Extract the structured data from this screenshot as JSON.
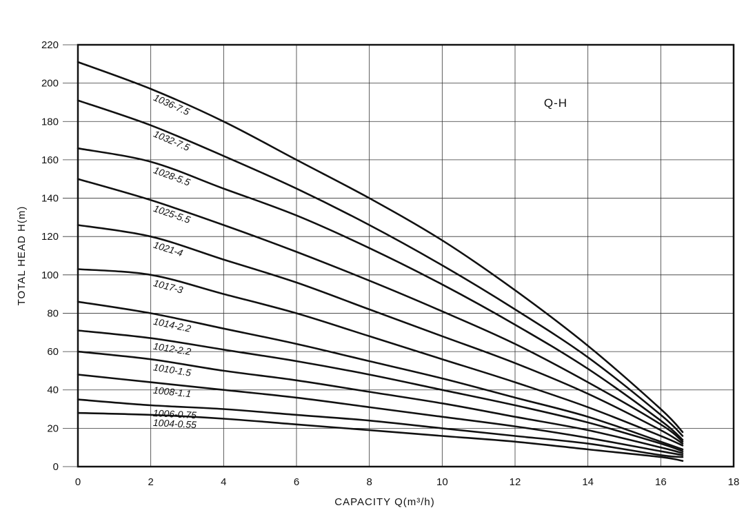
{
  "chart_data": {
    "type": "line",
    "title": "",
    "annotation": "Q-H",
    "xlabel": "CAPACITY  Q(m³/h)",
    "ylabel": "TOTAL HEAD  H(m)",
    "xlim": [
      0,
      18
    ],
    "ylim": [
      0,
      220
    ],
    "xticks": [
      "0",
      "2",
      "4",
      "6",
      "8",
      "10",
      "12",
      "14",
      "16",
      "18"
    ],
    "yticks": [
      "0",
      "20",
      "40",
      "60",
      "80",
      "100",
      "120",
      "140",
      "160",
      "180",
      "200",
      "220"
    ],
    "grid": true,
    "legend": "none",
    "series": [
      {
        "name": "1036-7.5",
        "x": [
          0,
          2,
          4,
          6,
          8,
          10,
          12,
          14,
          16,
          16.6
        ],
        "y": [
          211,
          197,
          180,
          160,
          140,
          118,
          92,
          63,
          30,
          18
        ]
      },
      {
        "name": "1032-7.5",
        "x": [
          0,
          2,
          4,
          6,
          8,
          10,
          12,
          14,
          16,
          16.6
        ],
        "y": [
          191,
          178,
          162,
          145,
          126,
          105,
          82,
          57,
          27,
          16
        ]
      },
      {
        "name": "1028-5.5",
        "x": [
          0,
          2,
          4,
          6,
          8,
          10,
          12,
          14,
          16,
          16.6
        ],
        "y": [
          166,
          159,
          145,
          131,
          114,
          95,
          74,
          51,
          24,
          14
        ]
      },
      {
        "name": "1025-5.5",
        "x": [
          0,
          2,
          4,
          6,
          8,
          10,
          12,
          14,
          16,
          16.6
        ],
        "y": [
          150,
          139,
          126,
          112,
          97,
          81,
          64,
          44,
          22,
          13
        ]
      },
      {
        "name": "1021-4",
        "x": [
          0,
          2,
          4,
          6,
          8,
          10,
          12,
          14,
          16,
          16.6
        ],
        "y": [
          126,
          120,
          108,
          96,
          82,
          68,
          54,
          38,
          19,
          12
        ]
      },
      {
        "name": "1017-3",
        "x": [
          0,
          2,
          4,
          6,
          8,
          10,
          12,
          14,
          16,
          16.6
        ],
        "y": [
          103,
          100,
          90,
          80,
          68,
          56,
          44,
          31,
          16,
          11
        ]
      },
      {
        "name": "1014-2.2",
        "x": [
          0,
          2,
          4,
          6,
          8,
          10,
          12,
          14,
          16,
          16.6
        ],
        "y": [
          86,
          80,
          72,
          64,
          55,
          46,
          36,
          26,
          13,
          9
        ]
      },
      {
        "name": "1012-2.2",
        "x": [
          0,
          2,
          4,
          6,
          8,
          10,
          12,
          14,
          16,
          16.6
        ],
        "y": [
          71,
          67,
          61,
          55,
          48,
          40,
          32,
          23,
          12,
          8
        ]
      },
      {
        "name": "1010-1.5",
        "x": [
          0,
          2,
          4,
          6,
          8,
          10,
          12,
          14,
          16,
          16.6
        ],
        "y": [
          60,
          56,
          50,
          45,
          39,
          33,
          26,
          19,
          10,
          7
        ]
      },
      {
        "name": "1008-1.1",
        "x": [
          0,
          2,
          4,
          6,
          8,
          10,
          12,
          14,
          16,
          16.6
        ],
        "y": [
          48,
          44,
          40,
          36,
          31,
          26,
          21,
          15,
          8,
          6
        ]
      },
      {
        "name": "1006-0.75",
        "x": [
          0,
          2,
          4,
          6,
          8,
          10,
          12,
          14,
          16,
          16.6
        ],
        "y": [
          35,
          32,
          30,
          27,
          24,
          20,
          16,
          12,
          6,
          5
        ]
      },
      {
        "name": "1004-0.55",
        "x": [
          0,
          2,
          4,
          6,
          8,
          10,
          12,
          14,
          16,
          16.6
        ],
        "y": [
          28,
          27,
          25,
          22,
          19,
          16,
          13,
          9,
          5,
          3
        ]
      }
    ]
  }
}
